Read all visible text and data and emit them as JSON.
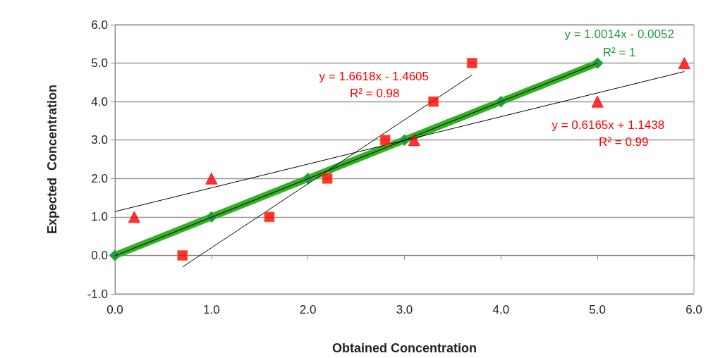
{
  "chart_data": {
    "type": "scatter",
    "xlabel": "Obtained Concentration",
    "ylabel": "Expected  Concentration",
    "xlim": [
      0,
      6
    ],
    "xticks": [
      {
        "value": 0,
        "label": "0.0"
      },
      {
        "value": 1,
        "label": "1.0"
      },
      {
        "value": 2,
        "label": "2.0"
      },
      {
        "value": 3,
        "label": "3.0"
      },
      {
        "value": 4,
        "label": "4.0"
      },
      {
        "value": 5,
        "label": "5.0"
      },
      {
        "value": 6,
        "label": "6.0"
      }
    ],
    "ylim": [
      -1,
      6
    ],
    "yticks": [
      {
        "value": -1,
        "label": "-1.0"
      },
      {
        "value": 0,
        "label": "0.0"
      },
      {
        "value": 1,
        "label": "1.0"
      },
      {
        "value": 2,
        "label": "2.0"
      },
      {
        "value": 3,
        "label": "3.0"
      },
      {
        "value": 4,
        "label": "4.0"
      },
      {
        "value": 5,
        "label": "5.0"
      },
      {
        "value": 6,
        "label": "6.0"
      }
    ],
    "grid": "y",
    "series": [
      {
        "type": "line",
        "marker": "diamond",
        "color": "#1f9a40",
        "x": [
          0,
          1,
          2,
          3,
          4,
          5
        ],
        "values": [
          0,
          1,
          2,
          3,
          4,
          5
        ]
      },
      {
        "marker": "square",
        "color": "#ff0000",
        "x": [
          0.7,
          1.6,
          2.2,
          2.8,
          3.3,
          3.7
        ],
        "values": [
          0,
          1,
          2,
          3,
          4,
          5
        ]
      },
      {
        "marker": "triangle",
        "color": "#ff0000",
        "x": [
          0.2,
          1.0,
          3.1,
          5.0,
          5.9
        ],
        "values": [
          1,
          2,
          3,
          4,
          5
        ]
      },
      {
        "type": "line",
        "marker": "none",
        "color": "#000000",
        "x": [
          0.7,
          3.7
        ],
        "values": [
          -0.3,
          4.69
        ]
      },
      {
        "type": "line",
        "marker": "none",
        "color": "#000000",
        "x": [
          0,
          5.9
        ],
        "values": [
          1.14,
          4.78
        ]
      },
      {
        "type": "line",
        "marker": "none",
        "color": "#000000",
        "x": [
          0,
          5
        ],
        "values": [
          -0.01,
          5.0
        ]
      }
    ],
    "annotations": [
      "y = 1.6618x - 1.4605",
      "R² = 0.98",
      "y = 0.6165x + 1.1438",
      "R² = 0.99",
      "y = 1.0014x - 0.0052",
      "R² = 1"
    ]
  }
}
